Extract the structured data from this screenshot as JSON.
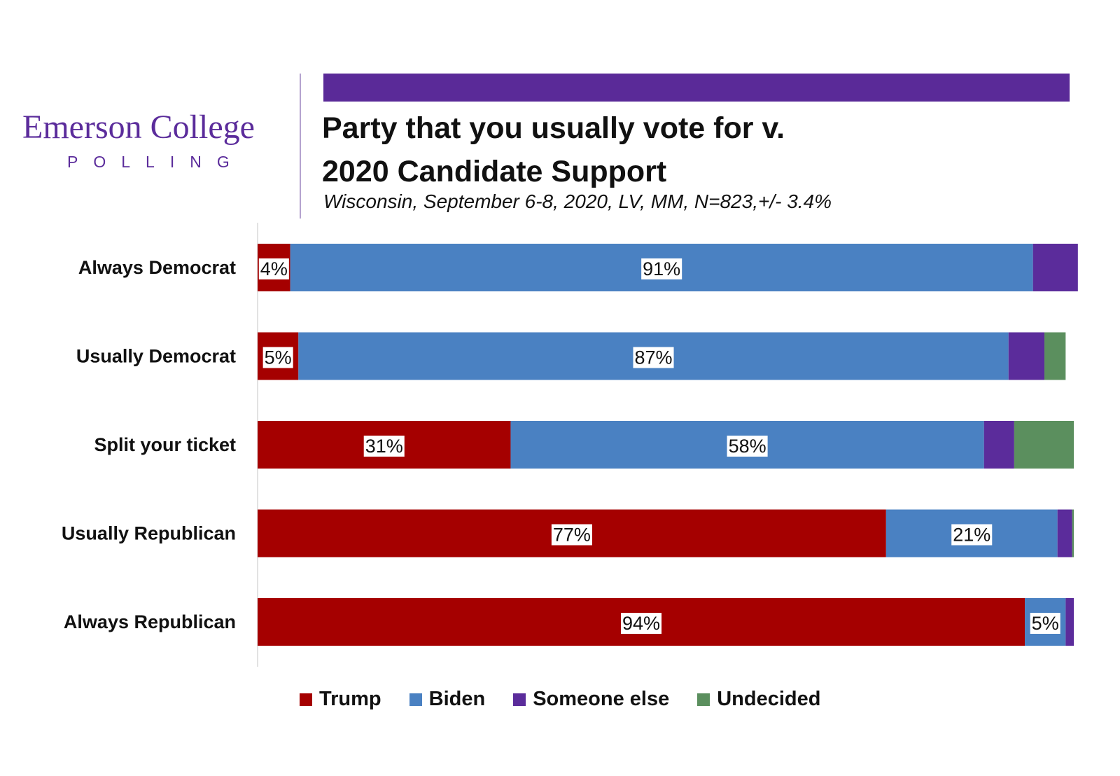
{
  "brand": {
    "name": "Emerson College",
    "tagline": "POLLING",
    "accent_color": "#5a2a98"
  },
  "chart_data": {
    "type": "bar",
    "orientation": "horizontal",
    "stacked": true,
    "title": "Party that you usually vote for v. 2020 Candidate Support",
    "title_lines": [
      "Party that you usually vote for v.",
      "2020 Candidate Support"
    ],
    "subtitle": "Wisconsin, September 6-8, 2020, LV, MM,  N=823,+/-  3.4%",
    "xlabel": "",
    "ylabel": "",
    "xlim": [
      0,
      100
    ],
    "grid": false,
    "legend_position": "bottom",
    "categories": [
      "Always Democrat",
      "Usually Democrat",
      "Split your ticket",
      "Usually Republican",
      "Always Republican"
    ],
    "series": [
      {
        "name": "Trump",
        "color": "#a50000",
        "values": [
          4,
          5,
          31,
          77,
          94
        ],
        "labels": [
          "4%",
          "5%",
          "31%",
          "77%",
          "94%"
        ]
      },
      {
        "name": "Biden",
        "color": "#4a81c2",
        "values": [
          91,
          87,
          58,
          21,
          5
        ],
        "labels": [
          "91%",
          "87%",
          "58%",
          "21%",
          "5%"
        ]
      },
      {
        "name": "Someone else",
        "color": "#5b2c9b",
        "values": [
          5.5,
          4.4,
          3.7,
          1.8,
          1
        ],
        "labels": [
          "",
          "",
          "",
          "",
          ""
        ]
      },
      {
        "name": "Undecided",
        "color": "#5b8f5e",
        "values": [
          0,
          2.6,
          7.3,
          0.2,
          0
        ],
        "labels": [
          "",
          "",
          "",
          "",
          ""
        ]
      }
    ]
  }
}
